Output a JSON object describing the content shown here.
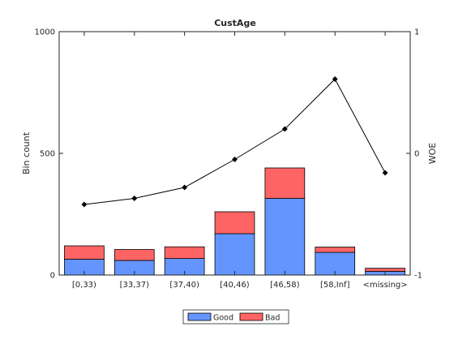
{
  "chart_data": {
    "type": "bar",
    "stacked": true,
    "title": "CustAge",
    "xlabel": "",
    "ylabel": "Bin count",
    "ylabel_right": "WOE",
    "categories": [
      "[0,33)",
      "[33,37)",
      "[37,40)",
      "[40,46)",
      "[46,58)",
      "[58,Inf]",
      "<missing>"
    ],
    "ylim": [
      0,
      1000
    ],
    "yticks": [
      0,
      500,
      1000
    ],
    "ylim_right": [
      -1,
      1
    ],
    "yticks_right": [
      -1,
      0,
      1
    ],
    "series": [
      {
        "name": "Good",
        "color": "#6495ff",
        "values": [
          65,
          60,
          68,
          170,
          315,
          93,
          15
        ]
      },
      {
        "name": "Bad",
        "color": "#ff6464",
        "values": [
          55,
          45,
          48,
          90,
          125,
          22,
          13
        ]
      }
    ],
    "woe": {
      "axis": "right",
      "color": "#000000",
      "marker": "diamond",
      "values": [
        -0.42,
        -0.37,
        -0.28,
        -0.05,
        0.2,
        0.61,
        -0.16
      ]
    },
    "legend": {
      "position": "bottom-center",
      "entries": [
        "Good",
        "Bad"
      ]
    },
    "grid": false
  }
}
